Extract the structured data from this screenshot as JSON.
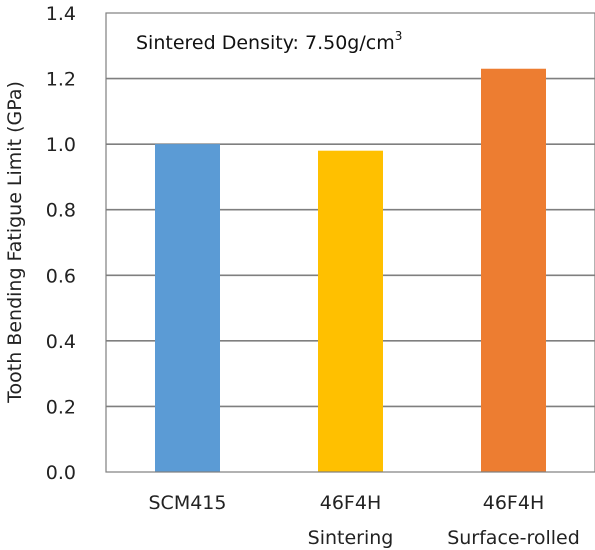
{
  "chart_data": {
    "type": "bar",
    "categories": [
      {
        "line1": "SCM415",
        "line2": ""
      },
      {
        "line1": "46F4H",
        "line2": "Sintering"
      },
      {
        "line1": "46F4H",
        "line2": "Surface-rolled"
      }
    ],
    "values": [
      1.0,
      0.98,
      1.23
    ],
    "colors": [
      "#5b9bd5",
      "#ffc000",
      "#ed7d31"
    ],
    "ylabel": "Tooth Bending  Fatigue Limit  (GPa)",
    "ylim": [
      0,
      1.4
    ],
    "yticks": [
      "0.0",
      "0.2",
      "0.4",
      "0.6",
      "0.8",
      "1.0",
      "1.2",
      "1.4"
    ],
    "grid": true,
    "annotation": {
      "text": "Sintered Density: 7.50g/cm",
      "superscript": "3"
    }
  }
}
